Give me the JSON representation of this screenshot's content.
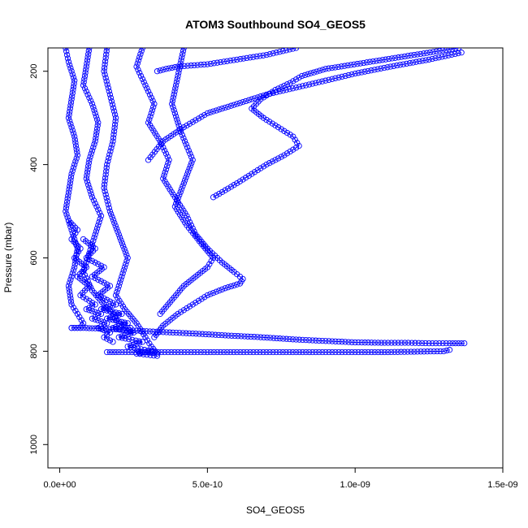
{
  "chart_data": {
    "type": "scatter",
    "title": "ATOM3 Southbound SO4_GEOS5",
    "xlabel": "SO4_GEOS5",
    "ylabel": "Pressure (mbar)",
    "xlim": [
      -4e-11,
      1.5e-09
    ],
    "ylim": [
      1050,
      150
    ],
    "y_axis_inverted": true,
    "xticks": [
      0,
      5e-10,
      1e-09,
      1.5e-09
    ],
    "xtick_labels": [
      "0.0e+00",
      "5.0e-10",
      "1.0e-09",
      "1.5e-09"
    ],
    "yticks": [
      200,
      400,
      600,
      800,
      1000
    ],
    "ytick_labels": [
      "200",
      "400",
      "600",
      "800",
      "1000"
    ],
    "marker": "open-circle",
    "line": "connected",
    "grid": false,
    "legend": "none",
    "series_color": "#0000ff",
    "series": [
      {
        "x": [
          2e-11,
          3e-11,
          5e-11,
          4e-11,
          3e-11,
          5e-11,
          6e-11,
          4e-11,
          3e-11,
          2e-11,
          4e-11,
          6e-11,
          5e-11,
          3e-11,
          4e-11,
          6e-11,
          8e-11,
          7e-11,
          5e-11,
          4e-11
        ],
        "y": [
          150,
          180,
          220,
          260,
          300,
          340,
          380,
          420,
          460,
          500,
          540,
          580,
          620,
          660,
          700,
          720,
          740,
          750,
          750,
          750
        ]
      },
      {
        "x": [
          1e-10,
          9e-11,
          8e-11,
          1.1e-10,
          1.3e-10,
          1.2e-10,
          1e-10,
          9e-11,
          1.1e-10,
          1.4e-10,
          1.2e-10,
          1e-10,
          8e-11,
          1.1e-10,
          1.5e-10,
          1.8e-10,
          2e-10,
          2.2e-10,
          2.4e-10
        ],
        "y": [
          150,
          190,
          230,
          270,
          310,
          350,
          390,
          430,
          470,
          510,
          550,
          590,
          630,
          670,
          700,
          720,
          740,
          750,
          750
        ]
      },
      {
        "x": [
          1.6e-10,
          1.5e-10,
          1.7e-10,
          1.9e-10,
          1.8e-10,
          1.6e-10,
          1.5e-10,
          1.7e-10,
          2e-10,
          2.3e-10,
          2.1e-10,
          1.9e-10,
          2.2e-10,
          2.6e-10,
          2.9e-10,
          3.1e-10,
          3.3e-10
        ],
        "y": [
          150,
          200,
          250,
          300,
          350,
          400,
          450,
          500,
          550,
          600,
          640,
          680,
          710,
          740,
          770,
          790,
          805
        ]
      },
      {
        "x": [
          2.8e-10,
          2.6e-10,
          2.9e-10,
          3.2e-10,
          3e-10,
          3.4e-10,
          3.7e-10,
          3.5e-10,
          3.9e-10,
          4.3e-10,
          4.6e-10,
          5e-10,
          5.5e-10,
          5.9e-10,
          6.2e-10,
          6.1e-10,
          5.6e-10,
          5e-10,
          4.5e-10,
          4e-10,
          3.5e-10,
          3.2e-10
        ],
        "y": [
          150,
          190,
          230,
          270,
          310,
          350,
          390,
          430,
          470,
          510,
          550,
          580,
          610,
          630,
          645,
          655,
          665,
          680,
          700,
          720,
          745,
          770
        ]
      },
      {
        "x": [
          4.2e-10,
          4e-10,
          3.8e-10,
          4.1e-10,
          4.5e-10,
          4.2e-10,
          3.9e-10,
          4.3e-10,
          4.8e-10,
          5.2e-10,
          5e-10,
          4.6e-10,
          4.2e-10,
          3.8e-10,
          3.4e-10
        ],
        "y": [
          150,
          210,
          270,
          330,
          390,
          440,
          490,
          530,
          570,
          600,
          620,
          640,
          660,
          690,
          720
        ]
      },
      {
        "x": [
          1.35e-09,
          1.2e-09,
          1.05e-09,
          9e-10,
          8.2e-10,
          7.8e-10,
          7.3e-10,
          6.8e-10,
          6.5e-10,
          6.9e-10,
          7.4e-10,
          7.9e-10,
          8.1e-10,
          7.6e-10,
          7e-10,
          6.5e-10,
          6e-10,
          5.6e-10,
          5.2e-10
        ],
        "y": [
          150,
          165,
          180,
          195,
          210,
          225,
          240,
          260,
          280,
          300,
          320,
          340,
          360,
          380,
          400,
          420,
          440,
          455,
          470
        ]
      },
      {
        "x": [
          1.36e-09,
          1.25e-09,
          1.12e-09,
          1e-09,
          9e-10,
          8e-10,
          7e-10,
          6e-10,
          5e-10,
          4.2e-10,
          3.5e-10,
          3e-10
        ],
        "y": [
          160,
          175,
          190,
          205,
          220,
          235,
          250,
          270,
          290,
          320,
          350,
          390
        ]
      },
      {
        "x": [
          8e-10,
          7e-10,
          6e-10,
          5e-10,
          4e-10,
          3.6e-10,
          3.3e-10
        ],
        "y": [
          150,
          165,
          175,
          185,
          190,
          195,
          200
        ]
      },
      {
        "x": [
          4e-11,
          5e-11,
          8e-11,
          1.2e-10,
          1.8e-10,
          2.6e-10,
          3.5e-10,
          4.5e-10,
          5.6e-10,
          6.8e-10,
          8e-10,
          9e-10,
          1e-09,
          1.1e-09,
          1.18e-09,
          1.25e-09,
          1.32e-09,
          1.37e-09
        ],
        "y": [
          750,
          750,
          750,
          751,
          753,
          756,
          759,
          762,
          766,
          770,
          775,
          778,
          781,
          782,
          782,
          783,
          783,
          783
        ]
      },
      {
        "x": [
          1.6e-10,
          2e-10,
          3e-10,
          4e-10,
          5e-10,
          6e-10,
          7e-10,
          8e-10,
          9e-10,
          1e-09,
          1.1e-09,
          1.2e-09,
          1.3e-09,
          1.32e-09
        ],
        "y": [
          802,
          802,
          802,
          802,
          802,
          802,
          802,
          802,
          802,
          802,
          802,
          801,
          800,
          797
        ]
      },
      {
        "x": [
          8e-11,
          1.2e-10,
          9e-11,
          1.5e-10,
          1.1e-10,
          1.7e-10,
          1.3e-10,
          1.9e-10,
          1.4e-10,
          2.1e-10,
          1.6e-10,
          2.3e-10,
          1.8e-10,
          2.5e-10,
          2e-10,
          2.8e-10,
          2.3e-10,
          3.1e-10,
          2.6e-10,
          3.3e-10
        ],
        "y": [
          560,
          580,
          600,
          620,
          640,
          660,
          680,
          700,
          710,
          720,
          730,
          740,
          750,
          760,
          770,
          780,
          790,
          800,
          805,
          810
        ]
      },
      {
        "x": [
          3e-11,
          6e-11,
          4e-11,
          7e-11,
          5e-11,
          9e-11,
          6e-11,
          1e-10,
          7e-11,
          1.2e-10,
          9e-11,
          1.4e-10,
          1.1e-10,
          1.6e-10,
          1.3e-10,
          1.7e-10,
          1.5e-10,
          1.8e-10
        ],
        "y": [
          520,
          540,
          560,
          580,
          600,
          620,
          640,
          660,
          680,
          700,
          710,
          720,
          730,
          740,
          750,
          760,
          770,
          780
        ]
      }
    ]
  }
}
